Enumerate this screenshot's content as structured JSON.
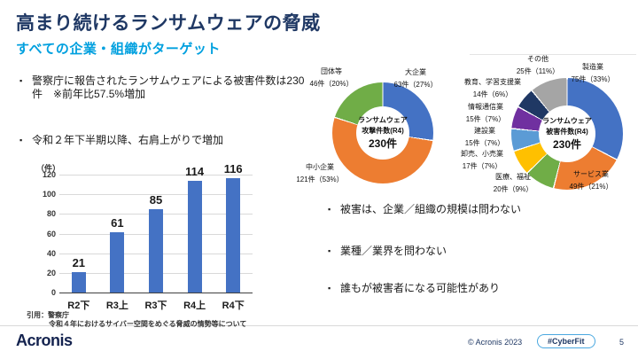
{
  "slide": {
    "title": "高まり続けるランサムウェアの脅威",
    "subtitle": "すべての企業・組織がターゲット",
    "bullet_char": "▪",
    "left_bullets": [
      "警察庁に報告されたランサムウェアによる被害件数は230件　※前年比57.5%増加",
      "令和２年下半期以降、右肩上がりで増加"
    ],
    "right_bullets": [
      "被害は、企業／組織の規模は問わない",
      "業種／業界を問わない",
      "誰もが被害者になる可能性があり"
    ],
    "citation": {
      "line1": "引用：警察庁",
      "line2": "令和４年におけるサイバー空間をめぐる脅威の情勢等について"
    },
    "footer": {
      "logo": "Acronis",
      "copyright": "© Acronis 2023",
      "hashtag": "#CyberFit",
      "page": "5"
    }
  },
  "chart_data": [
    {
      "type": "bar",
      "title": "",
      "xlabel": "",
      "ylabel": "（件）",
      "categories": [
        "R2下",
        "R3上",
        "R3下",
        "R4上",
        "R4下"
      ],
      "values": [
        21,
        61,
        85,
        114,
        116
      ],
      "ylim": [
        0,
        120
      ],
      "yticks": [
        0,
        20,
        40,
        60,
        80,
        100,
        120
      ],
      "bar_color": "#4472C4",
      "grid": true,
      "legend": "none"
    },
    {
      "type": "pie",
      "donut": true,
      "center_lines": [
        "ランサムウェア",
        "攻撃件数(R4)",
        "230件"
      ],
      "total": 230,
      "slices": [
        {
          "name": "大企業",
          "value": 63,
          "label": "63件（27%）",
          "color": "#4472C4"
        },
        {
          "name": "中小企業",
          "value": 121,
          "label": "121件（53%）",
          "color": "#ED7D31"
        },
        {
          "name": "団体等",
          "value": 46,
          "label": "46件（20%）",
          "color": "#70AD47"
        }
      ]
    },
    {
      "type": "pie",
      "donut": true,
      "center_lines": [
        "ランサムウェア",
        "被害件数(R4)",
        "230件"
      ],
      "total": 230,
      "slices": [
        {
          "name": "製造業",
          "value": 75,
          "label": "75件（33%）",
          "color": "#4472C4"
        },
        {
          "name": "サービス業",
          "value": 49,
          "label": "49件（21%）",
          "color": "#ED7D31"
        },
        {
          "name": "医療、福祉",
          "value": 20,
          "label": "20件（9%）",
          "color": "#70AD47"
        },
        {
          "name": "卸売、小売業",
          "value": 17,
          "label": "17件（7%）",
          "color": "#FFC000"
        },
        {
          "name": "建設業",
          "value": 15,
          "label": "15件（7%）",
          "color": "#5B9BD5"
        },
        {
          "name": "情報通信業",
          "value": 15,
          "label": "15件（7%）",
          "color": "#7030A0"
        },
        {
          "name": "教育、学習支援業",
          "value": 14,
          "label": "14件（6%）",
          "color": "#1F3864"
        },
        {
          "name": "その他",
          "value": 25,
          "label": "25件（11%）",
          "color": "#A5A5A5"
        }
      ]
    }
  ]
}
